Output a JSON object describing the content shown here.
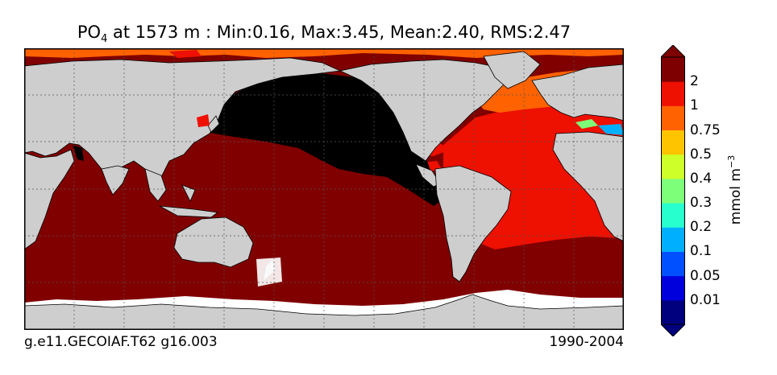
{
  "title": {
    "variable": "PO",
    "subscript": "4",
    "rest": " at 1573 m : Min:0.16, Max:3.45, Mean:2.40, RMS:2.47"
  },
  "footer": {
    "case": "g.e11.GECOIAF.T62 g16.003",
    "years": "1990-2004"
  },
  "colorbar": {
    "unit_base": "mmol m",
    "unit_exp": "−3",
    "ticks": [
      "0.01",
      "0.05",
      "0.1",
      "0.2",
      "0.3",
      "0.4",
      "0.5",
      "0.75",
      "1",
      "2"
    ],
    "colors": [
      "#00007f",
      "#0000dd",
      "#0050ff",
      "#00b0ff",
      "#28ffce",
      "#7dff7a",
      "#ceff28",
      "#ffc400",
      "#ff6200",
      "#ee1000",
      "#7f0000"
    ]
  },
  "map": {
    "land_color": "#cecece",
    "no_data_color": "#ffffff",
    "pacific_color": "#000000",
    "southern_indian_color": "#800000",
    "atlantic_color": "#ee1000",
    "north_atlantic_color": "#ff6200",
    "mediterranean_colors": [
      "#7dff7a",
      "#00b0ff"
    ]
  }
}
